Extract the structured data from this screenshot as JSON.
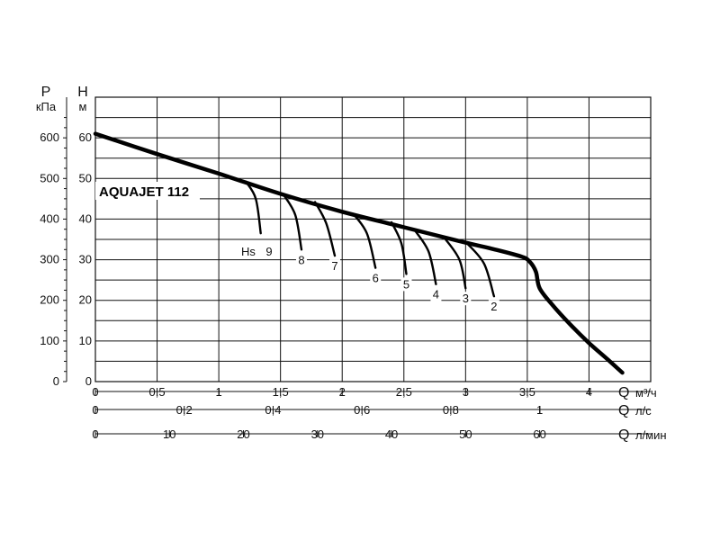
{
  "chart_data": {
    "type": "line",
    "model_label": "AQUAJET 112",
    "y_left": {
      "symbol": "P",
      "unit": "кПа",
      "ticks": [
        0,
        100,
        200,
        300,
        400,
        500,
        600
      ]
    },
    "y_right": {
      "symbol": "H",
      "unit": "м",
      "ticks": [
        0,
        10,
        20,
        30,
        40,
        50,
        60
      ],
      "range": [
        0,
        70
      ]
    },
    "x_axes": [
      {
        "symbol": "Q",
        "unit": "м³/ч",
        "range": [
          0,
          4.5
        ],
        "ticks": [
          {
            "v": 0,
            "t": "0"
          },
          {
            "v": 0.5,
            "t": "0,5"
          },
          {
            "v": 1,
            "t": "1"
          },
          {
            "v": 1.5,
            "t": "1,5"
          },
          {
            "v": 2,
            "t": "2"
          },
          {
            "v": 2.5,
            "t": "2,5"
          },
          {
            "v": 3,
            "t": "3"
          },
          {
            "v": 3.5,
            "t": "3,5"
          },
          {
            "v": 4,
            "t": "4"
          }
        ]
      },
      {
        "symbol": "Q",
        "unit": "л/с",
        "range": [
          0,
          1.25
        ],
        "ticks": [
          {
            "v": 0,
            "t": "0"
          },
          {
            "v": 0.2,
            "t": "0,2"
          },
          {
            "v": 0.4,
            "t": "0,4"
          },
          {
            "v": 0.6,
            "t": "0,6"
          },
          {
            "v": 0.8,
            "t": "0,8"
          },
          {
            "v": 1,
            "t": "1"
          }
        ]
      },
      {
        "symbol": "Q",
        "unit": "л/мин",
        "range": [
          0,
          75
        ],
        "ticks": [
          {
            "v": 0,
            "t": "0"
          },
          {
            "v": 10,
            "t": "10"
          },
          {
            "v": 20,
            "t": "20"
          },
          {
            "v": 30,
            "t": "30"
          },
          {
            "v": 40,
            "t": "40"
          },
          {
            "v": 50,
            "t": "50"
          },
          {
            "v": 60,
            "t": "60"
          }
        ]
      }
    ],
    "grid": true,
    "main_curve": {
      "x_unit": "м³/ч",
      "y_unit": "м",
      "points": [
        [
          0,
          61
        ],
        [
          0.5,
          56
        ],
        [
          1,
          51.2
        ],
        [
          1.5,
          46.2
        ],
        [
          2,
          41.8
        ],
        [
          2.5,
          38
        ],
        [
          3,
          34.2
        ],
        [
          3.2,
          32.8
        ],
        [
          3.45,
          30.8
        ],
        [
          3.52,
          29.5
        ],
        [
          3.57,
          27
        ],
        [
          3.6,
          23
        ],
        [
          3.7,
          19
        ],
        [
          3.85,
          14
        ],
        [
          4,
          9.5
        ],
        [
          4.15,
          5.5
        ],
        [
          4.27,
          2.2
        ]
      ]
    },
    "hs_label": "Hs",
    "suction_curves": [
      {
        "label": "9",
        "points": [
          [
            1.22,
            49.2
          ],
          [
            1.3,
            45
          ],
          [
            1.34,
            36.5
          ]
        ]
      },
      {
        "label": "8",
        "points": [
          [
            1.52,
            46.2
          ],
          [
            1.62,
            41
          ],
          [
            1.67,
            32.5
          ]
        ]
      },
      {
        "label": "7",
        "points": [
          [
            1.78,
            44.2
          ],
          [
            1.87,
            39
          ],
          [
            1.94,
            31
          ]
        ]
      },
      {
        "label": "6",
        "points": [
          [
            2.09,
            41.3
          ],
          [
            2.2,
            36.5
          ],
          [
            2.27,
            28
          ]
        ]
      },
      {
        "label": "5",
        "points": [
          [
            2.4,
            39.2
          ],
          [
            2.48,
            34
          ],
          [
            2.52,
            26.5
          ]
        ]
      },
      {
        "label": "4",
        "points": [
          [
            2.59,
            37.2
          ],
          [
            2.7,
            32
          ],
          [
            2.76,
            24
          ]
        ]
      },
      {
        "label": "3",
        "points": [
          [
            2.83,
            35.3
          ],
          [
            2.95,
            30
          ],
          [
            3,
            23
          ]
        ]
      },
      {
        "label": "2",
        "points": [
          [
            3.01,
            34.1
          ],
          [
            3.15,
            29
          ],
          [
            3.23,
            21
          ]
        ]
      }
    ]
  }
}
